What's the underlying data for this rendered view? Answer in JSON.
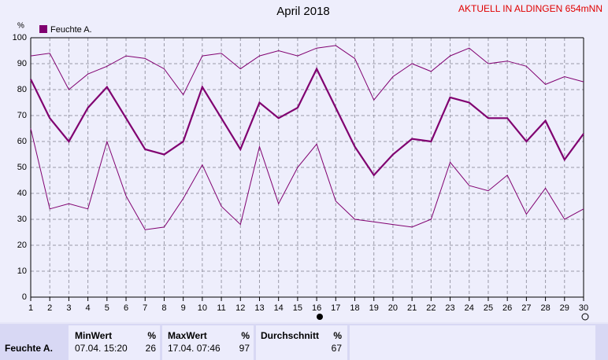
{
  "chart_data": {
    "type": "line",
    "title": "April 2018",
    "subtitle": "AKTUELL IN ALDINGEN 654mNN",
    "y_label": "%",
    "x": [
      1,
      2,
      3,
      4,
      5,
      6,
      7,
      8,
      9,
      10,
      11,
      12,
      13,
      14,
      15,
      16,
      17,
      18,
      19,
      20,
      21,
      22,
      23,
      24,
      25,
      26,
      27,
      28,
      29,
      30
    ],
    "xlim": [
      1,
      30
    ],
    "xticks": [
      1,
      2,
      3,
      4,
      5,
      6,
      7,
      8,
      9,
      10,
      11,
      12,
      13,
      14,
      15,
      16,
      17,
      18,
      19,
      20,
      21,
      22,
      23,
      24,
      25,
      26,
      27,
      28,
      29,
      30
    ],
    "ylim": [
      0,
      100
    ],
    "yticks": [
      0,
      10,
      20,
      30,
      40,
      50,
      60,
      70,
      80,
      90,
      100
    ],
    "grid": true,
    "legend": "top-left",
    "series": [
      {
        "color": "#800070",
        "values": [
          93,
          94,
          80,
          86,
          89,
          93,
          92,
          88,
          78,
          93,
          94,
          88,
          93,
          95,
          93,
          96,
          97,
          92,
          76,
          85,
          90,
          87,
          93,
          96,
          90,
          91,
          89,
          82,
          85,
          83
        ]
      },
      {
        "name": "Feuchte A.",
        "color": "#800070",
        "values": [
          84,
          69,
          60,
          73,
          81,
          69,
          57,
          55,
          60,
          81,
          69,
          57,
          75,
          69,
          73,
          88,
          73,
          58,
          47,
          55,
          61,
          60,
          77,
          75,
          69,
          69,
          60,
          68,
          53,
          63
        ]
      },
      {
        "color": "#800070",
        "values": [
          65,
          34,
          36,
          34,
          60,
          39,
          26,
          27,
          38,
          51,
          35,
          28,
          58,
          36,
          50,
          59,
          37,
          30,
          29,
          28,
          27,
          30,
          52,
          43,
          41,
          47,
          32,
          42,
          30,
          34
        ]
      }
    ]
  },
  "table": {
    "row_label": "Feuchte A.",
    "min": {
      "header": "MinWert",
      "unit": "%",
      "time": "07.04. 15:20",
      "value": "26"
    },
    "max": {
      "header": "MaxWert",
      "unit": "%",
      "time": "17.04. 07:46",
      "value": "97"
    },
    "avg": {
      "header": "Durchschnitt",
      "unit": "%",
      "value": "67"
    }
  }
}
